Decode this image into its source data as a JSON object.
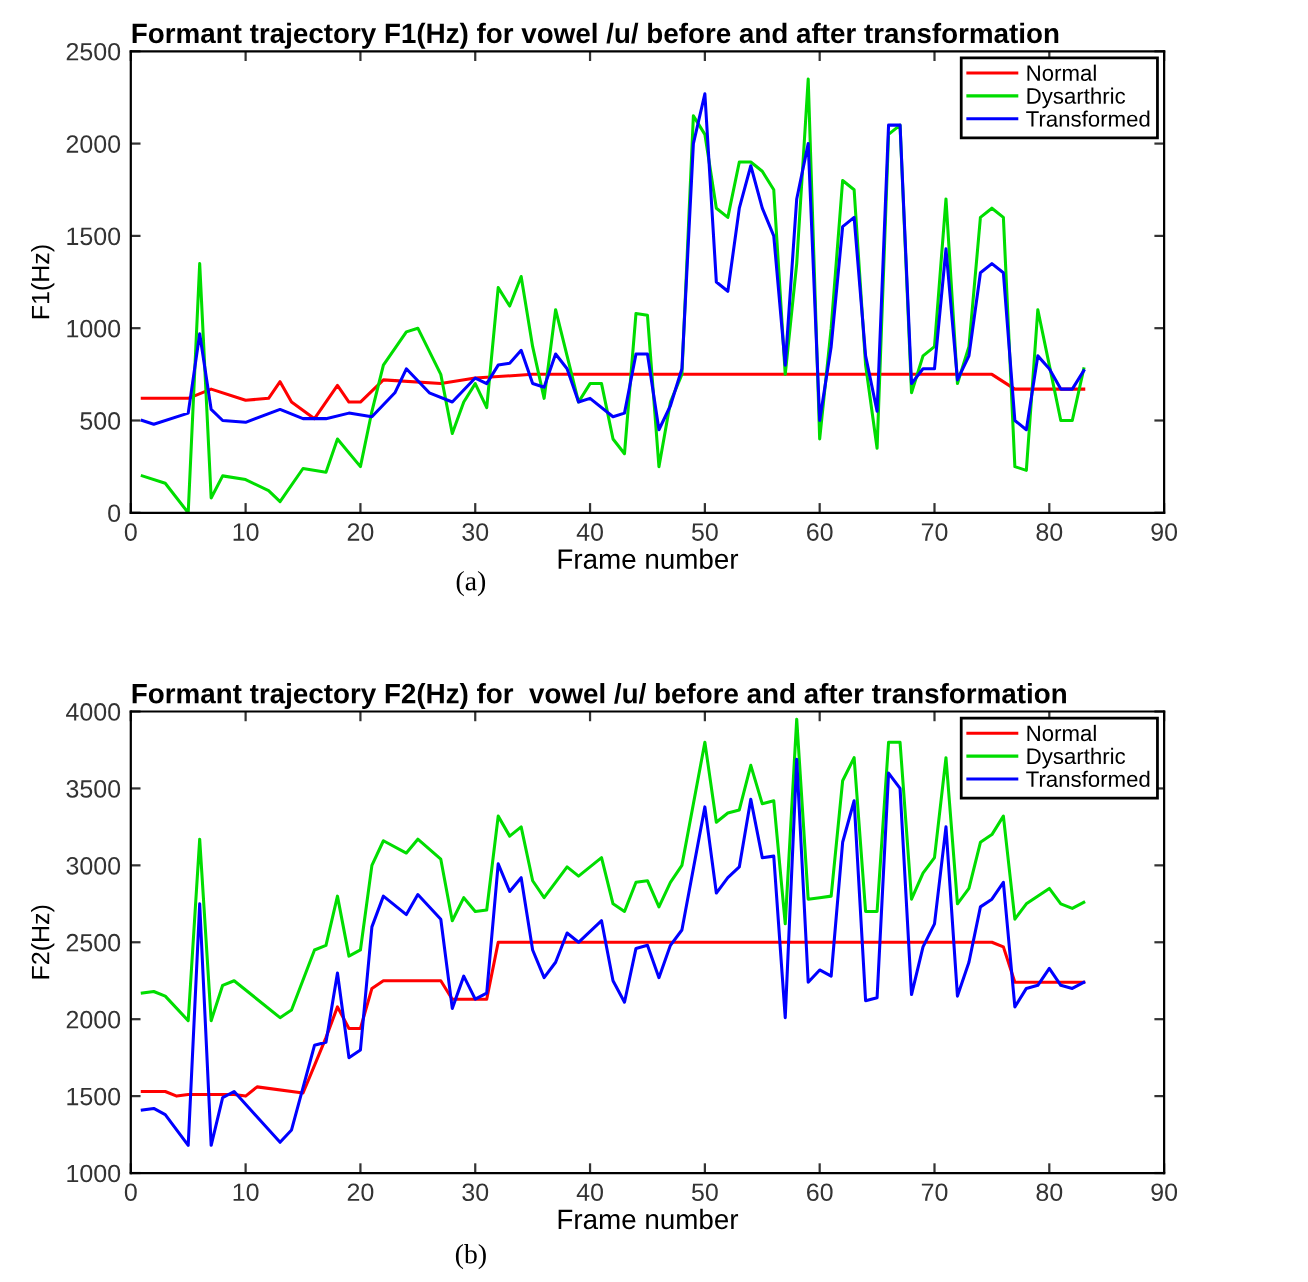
{
  "chart_data": [
    {
      "type": "line",
      "title": "Formant trajectory F1(Hz) for vowel /u/ before and after transformation",
      "xlabel": "Frame number",
      "ylabel": "F1(Hz)",
      "annotations": [
        "(a)"
      ],
      "xlim": [
        0,
        90
      ],
      "xticks": [
        0,
        10,
        20,
        30,
        40,
        50,
        60,
        70,
        80,
        90
      ],
      "ylim": [
        0,
        2500
      ],
      "yticks": [
        0,
        500,
        1000,
        1500,
        2000,
        2500
      ],
      "grid": false,
      "legend": "top right",
      "series": [
        {
          "name": "Normal",
          "color": "#ff0000",
          "x": [
            1,
            5,
            7,
            10,
            12,
            13,
            14,
            16,
            18,
            19,
            20,
            22,
            27,
            30,
            35,
            75,
            77,
            83
          ],
          "values": [
            620,
            620,
            670,
            610,
            620,
            710,
            600,
            510,
            690,
            600,
            600,
            720,
            700,
            730,
            750,
            750,
            670,
            670
          ]
        },
        {
          "name": "Dysarthric",
          "color": "#00dd00",
          "x": [
            1,
            3,
            5,
            6,
            7,
            8,
            10,
            12,
            13,
            15,
            17,
            18,
            20,
            21,
            22,
            24,
            25,
            27,
            28,
            29,
            30,
            31,
            32,
            33,
            34,
            35,
            36,
            37,
            38,
            39,
            40,
            41,
            42,
            43,
            44,
            45,
            46,
            47,
            48,
            49,
            50,
            51,
            52,
            53,
            54,
            55,
            56,
            57,
            58,
            59,
            60,
            61,
            62,
            63,
            64,
            65,
            66,
            67,
            68,
            69,
            70,
            71,
            72,
            73,
            74,
            75,
            76,
            77,
            78,
            79,
            80,
            81,
            82,
            83
          ],
          "values": [
            200,
            160,
            0,
            1350,
            80,
            200,
            180,
            120,
            60,
            240,
            220,
            400,
            250,
            550,
            800,
            980,
            1000,
            750,
            430,
            600,
            700,
            570,
            1220,
            1120,
            1280,
            900,
            620,
            1100,
            850,
            600,
            700,
            700,
            400,
            320,
            1080,
            1070,
            250,
            600,
            750,
            2150,
            2050,
            1650,
            1600,
            1900,
            1900,
            1850,
            1750,
            750,
            1350,
            2350,
            400,
            1000,
            1800,
            1750,
            800,
            350,
            2050,
            2100,
            650,
            850,
            900,
            1700,
            700,
            900,
            1600,
            1650,
            1600,
            250,
            230,
            1100,
            800,
            500,
            500,
            780
          ]
        },
        {
          "name": "Transformed",
          "color": "#0000ff",
          "x": [
            1,
            2,
            5,
            6,
            7,
            8,
            10,
            13,
            15,
            17,
            19,
            21,
            23,
            24,
            26,
            28,
            30,
            31,
            32,
            33,
            34,
            35,
            36,
            37,
            38,
            39,
            40,
            42,
            43,
            44,
            45,
            46,
            47,
            48,
            49,
            50,
            51,
            52,
            53,
            54,
            55,
            56,
            57,
            58,
            59,
            60,
            61,
            62,
            63,
            64,
            65,
            66,
            67,
            68,
            69,
            70,
            71,
            72,
            73,
            74,
            75,
            76,
            77,
            78,
            79,
            80,
            81,
            82,
            83
          ],
          "values": [
            500,
            480,
            540,
            970,
            560,
            500,
            490,
            560,
            510,
            510,
            540,
            520,
            650,
            780,
            650,
            600,
            730,
            700,
            800,
            810,
            880,
            700,
            680,
            860,
            780,
            600,
            620,
            520,
            540,
            860,
            860,
            450,
            580,
            780,
            2000,
            2270,
            1250,
            1200,
            1650,
            1880,
            1650,
            1500,
            800,
            1700,
            2000,
            500,
            900,
            1550,
            1600,
            850,
            550,
            2100,
            2100,
            700,
            780,
            780,
            1430,
            720,
            850,
            1300,
            1350,
            1300,
            500,
            450,
            850,
            780,
            670,
            670,
            770
          ]
        }
      ]
    },
    {
      "type": "line",
      "title": "Formant trajectory F2(Hz) for  vowel /u/ before and after transformation",
      "xlabel": "Frame number",
      "ylabel": "F2(Hz)",
      "annotations": [
        "(b)"
      ],
      "xlim": [
        0,
        90
      ],
      "xticks": [
        0,
        10,
        20,
        30,
        40,
        50,
        60,
        70,
        80,
        90
      ],
      "ylim": [
        1000,
        4000
      ],
      "yticks": [
        1000,
        1500,
        2000,
        2500,
        3000,
        3500,
        4000
      ],
      "grid": false,
      "legend": "top right",
      "series": [
        {
          "name": "Normal",
          "color": "#ff0000",
          "x": [
            1,
            3,
            4,
            5,
            9,
            10,
            11,
            15,
            16,
            17,
            18,
            19,
            20,
            21,
            22,
            27,
            28,
            31,
            32,
            75,
            76,
            77,
            83
          ],
          "values": [
            1530,
            1530,
            1500,
            1510,
            1510,
            1500,
            1560,
            1520,
            1700,
            1880,
            2080,
            1940,
            1940,
            2200,
            2250,
            2250,
            2130,
            2130,
            2500,
            2500,
            2470,
            2240,
            2240
          ]
        },
        {
          "name": "Dysarthric",
          "color": "#00dd00",
          "x": [
            1,
            2,
            3,
            5,
            6,
            7,
            8,
            9,
            13,
            14,
            16,
            17,
            18,
            19,
            20,
            21,
            22,
            24,
            25,
            27,
            28,
            29,
            30,
            31,
            32,
            33,
            34,
            35,
            36,
            38,
            39,
            41,
            42,
            43,
            44,
            45,
            46,
            47,
            48,
            50,
            51,
            52,
            53,
            54,
            55,
            56,
            57,
            58,
            59,
            60,
            61,
            62,
            63,
            64,
            65,
            66,
            67,
            68,
            69,
            70,
            71,
            72,
            73,
            74,
            75,
            76,
            77,
            78,
            80,
            81,
            82,
            83
          ],
          "values": [
            2170,
            2180,
            2150,
            1990,
            3170,
            1990,
            2220,
            2250,
            2010,
            2060,
            2450,
            2480,
            2800,
            2410,
            2450,
            3000,
            3160,
            3080,
            3170,
            3040,
            2640,
            2790,
            2700,
            2710,
            3320,
            3190,
            3250,
            2900,
            2790,
            2990,
            2930,
            3050,
            2750,
            2700,
            2890,
            2900,
            2730,
            2890,
            3000,
            3800,
            3280,
            3340,
            3360,
            3650,
            3400,
            3420,
            2620,
            3950,
            2780,
            2790,
            2800,
            3550,
            3700,
            2700,
            2700,
            3800,
            3800,
            2780,
            2950,
            3050,
            3700,
            2750,
            2850,
            3150,
            3200,
            3320,
            2650,
            2750,
            2850,
            2750,
            2720,
            2760
          ]
        },
        {
          "name": "Transformed",
          "color": "#0000ff",
          "x": [
            1,
            2,
            3,
            5,
            6,
            7,
            8,
            9,
            13,
            14,
            16,
            17,
            18,
            19,
            20,
            21,
            22,
            24,
            25,
            27,
            28,
            29,
            30,
            31,
            32,
            33,
            34,
            35,
            36,
            37,
            38,
            39,
            41,
            42,
            43,
            44,
            45,
            46,
            47,
            48,
            50,
            51,
            52,
            53,
            54,
            55,
            56,
            57,
            58,
            59,
            60,
            61,
            62,
            63,
            64,
            65,
            66,
            67,
            68,
            69,
            70,
            71,
            72,
            73,
            74,
            75,
            76,
            77,
            78,
            79,
            80,
            81,
            82,
            83
          ],
          "values": [
            1410,
            1420,
            1380,
            1180,
            2750,
            1180,
            1490,
            1530,
            1200,
            1280,
            1830,
            1850,
            2300,
            1750,
            1800,
            2600,
            2800,
            2680,
            2810,
            2650,
            2070,
            2280,
            2130,
            2170,
            3010,
            2830,
            2920,
            2450,
            2270,
            2370,
            2560,
            2500,
            2640,
            2250,
            2110,
            2460,
            2480,
            2270,
            2480,
            2580,
            3380,
            2820,
            2920,
            2990,
            3430,
            3050,
            3060,
            2010,
            3690,
            2240,
            2320,
            2280,
            3150,
            3420,
            2120,
            2140,
            3600,
            3500,
            2160,
            2470,
            2620,
            3250,
            2150,
            2370,
            2730,
            2780,
            2890,
            2080,
            2200,
            2220,
            2330,
            2220,
            2200,
            2240
          ]
        }
      ]
    }
  ]
}
